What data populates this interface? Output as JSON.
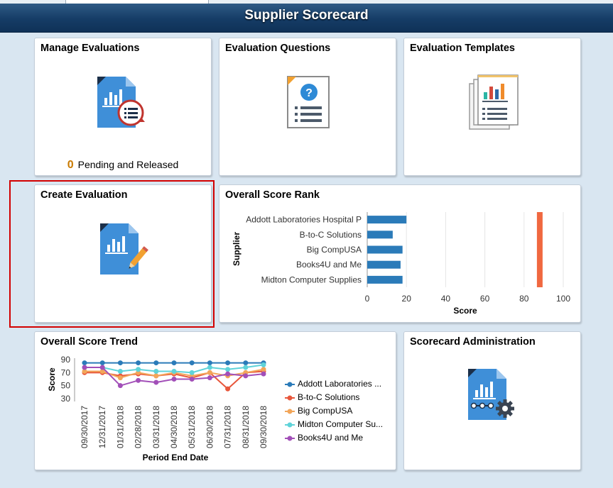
{
  "header": {
    "title": "Supplier Scorecard"
  },
  "tiles": {
    "manage": {
      "title": "Manage Evaluations",
      "badge_count": "0",
      "badge_text": "Pending and Released"
    },
    "questions": {
      "title": "Evaluation Questions"
    },
    "templates": {
      "title": "Evaluation Templates"
    },
    "create": {
      "title": "Create Evaluation"
    },
    "rank": {
      "title": "Overall Score Rank"
    },
    "trend": {
      "title": "Overall Score Trend"
    },
    "admin": {
      "title": "Scorecard Administration"
    }
  },
  "icons": {
    "manage": "document-chart-list-refresh-icon",
    "questions": "document-question-icon",
    "templates": "stacked-documents-chart-icon",
    "create": "document-chart-pencil-icon",
    "admin": "document-chart-gear-icon"
  },
  "colors": {
    "header": "#153c66",
    "icon_blue": "#3f8fd8",
    "bar_blue": "#2b7bb9",
    "highlight_bar": "#f06840",
    "selection_border": "#d20000"
  },
  "chart_data": [
    {
      "type": "bar",
      "orientation": "horizontal",
      "ylabel": "Supplier",
      "xlabel": "Score",
      "categories": [
        "Addott Laboratories Hospital P",
        "B-to-C Solutions",
        "Big CompUSA",
        "Books4U and Me",
        "Midton Computer Supplies"
      ],
      "values": [
        20,
        13,
        18,
        17,
        18
      ],
      "xlim": [
        0,
        100
      ],
      "xticks": [
        0,
        20,
        40,
        60,
        80,
        100
      ],
      "reference_line": 88,
      "grid": true
    },
    {
      "type": "line",
      "xlabel": "Period End Date",
      "ylabel": "Score",
      "ylim": [
        30,
        90
      ],
      "yticks": [
        30,
        50,
        70,
        90
      ],
      "x": [
        "09/30/2017",
        "12/31/2017",
        "01/31/2018",
        "02/28/2018",
        "03/31/2018",
        "04/30/2018",
        "05/31/2018",
        "06/30/2018",
        "07/31/2018",
        "08/31/2018",
        "09/30/2018"
      ],
      "series": [
        {
          "name": "Addott Laboratories ...",
          "color": "#2b7bb9",
          "values": [
            85,
            85,
            85,
            85,
            85,
            85,
            85,
            85,
            85,
            85,
            85
          ]
        },
        {
          "name": "B-to-C Solutions",
          "color": "#e8573c",
          "values": [
            70,
            70,
            65,
            68,
            65,
            68,
            62,
            70,
            45,
            70,
            72
          ]
        },
        {
          "name": "Big CompUSA",
          "color": "#f2a65a",
          "values": [
            72,
            72,
            62,
            70,
            65,
            70,
            65,
            70,
            65,
            70,
            75
          ]
        },
        {
          "name": "Midton Computer Su...",
          "color": "#5fd3d9",
          "values": [
            78,
            78,
            72,
            75,
            72,
            72,
            70,
            78,
            75,
            78,
            82
          ]
        },
        {
          "name": "Books4U and Me",
          "color": "#a24fb8",
          "values": [
            78,
            78,
            50,
            58,
            55,
            60,
            60,
            62,
            68,
            65,
            68
          ]
        }
      ],
      "legend": "right"
    }
  ]
}
